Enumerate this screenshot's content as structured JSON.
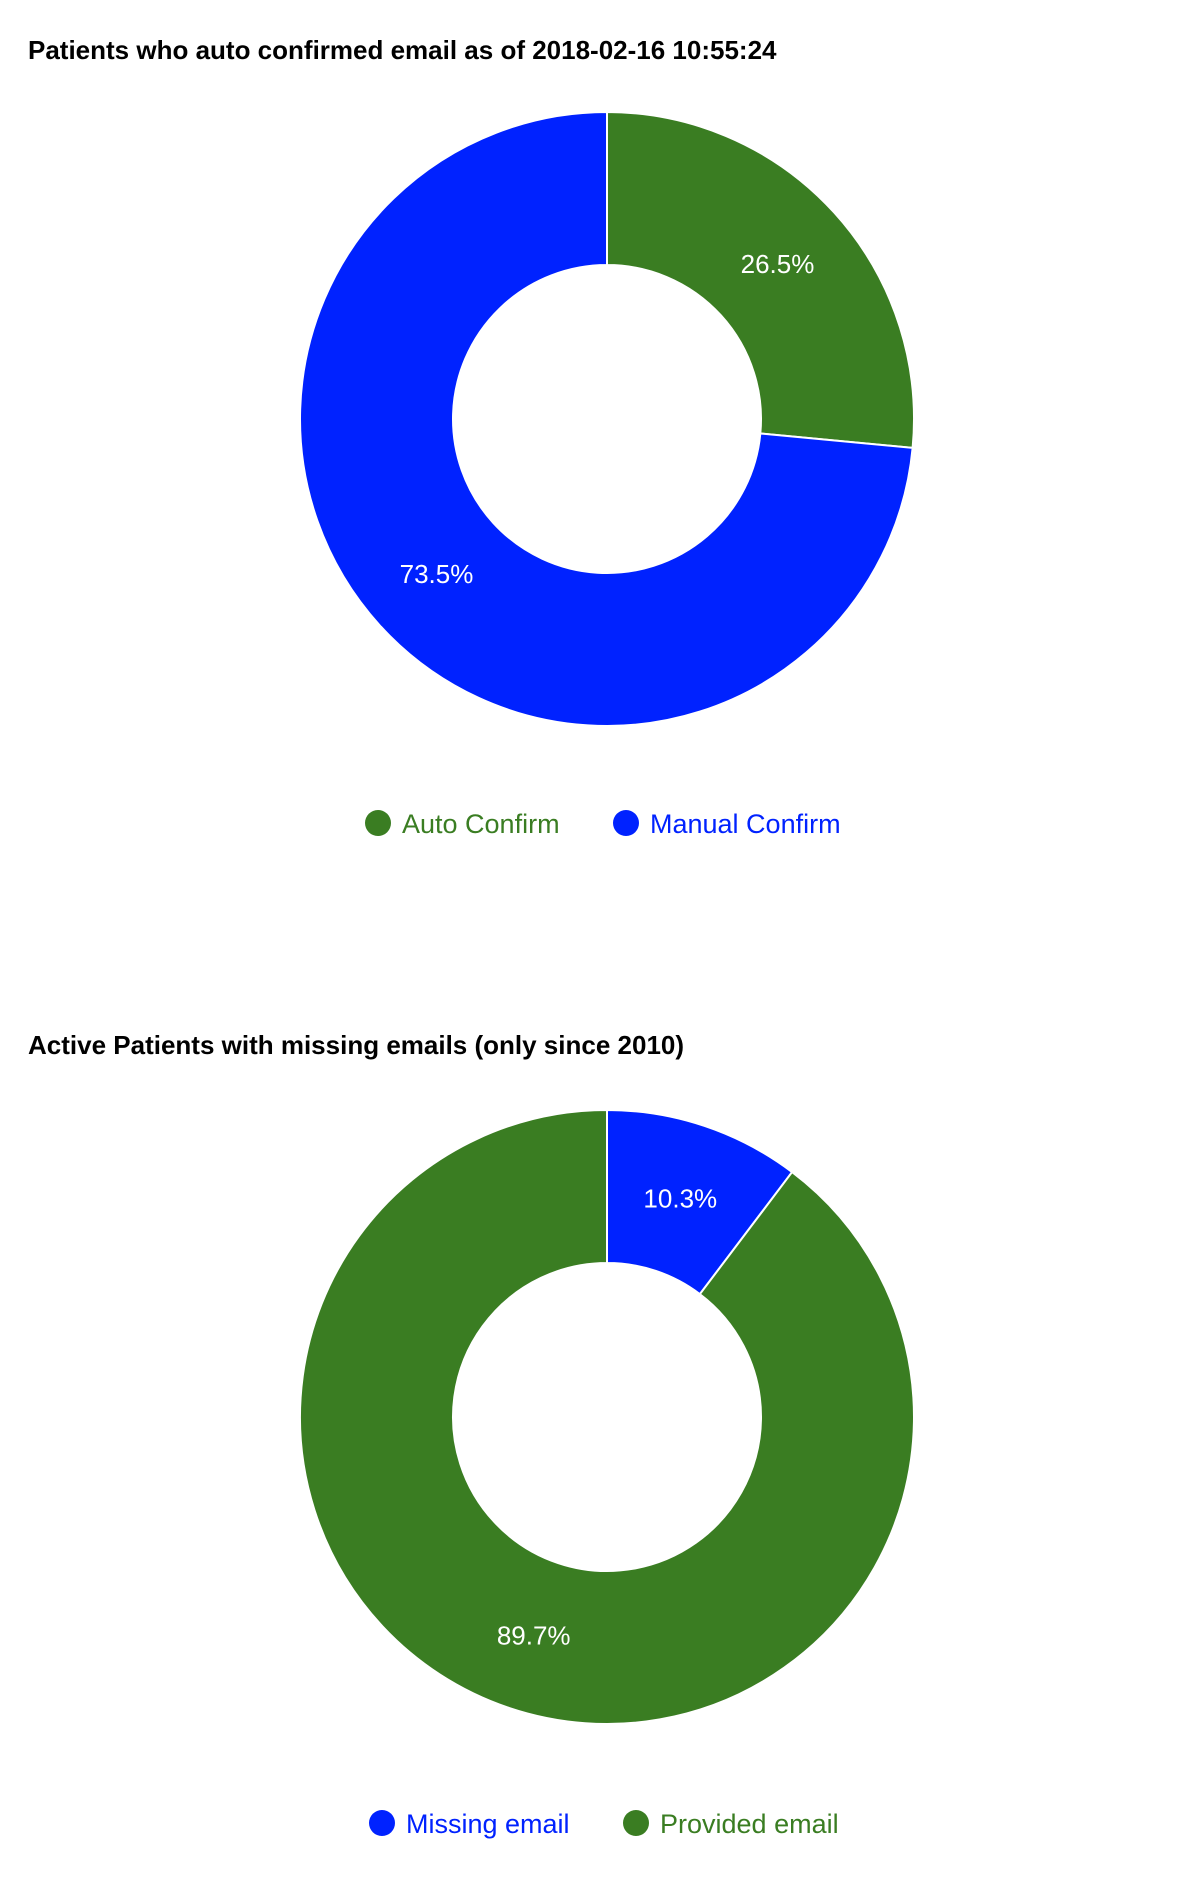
{
  "chart_data": [
    {
      "type": "pie",
      "donut": true,
      "title": "Patients who auto confirmed email as of 2018-02-16 10:55:24",
      "legend_position": "bottom",
      "slices": [
        {
          "name": "Auto Confirm",
          "value": 26.5,
          "label": "26.5%",
          "color": "#3a7d22"
        },
        {
          "name": "Manual Confirm",
          "value": 73.5,
          "label": "73.5%",
          "color": "#0022ff"
        }
      ]
    },
    {
      "type": "pie",
      "donut": true,
      "title": "Active Patients with missing emails (only since 2010)",
      "legend_position": "bottom",
      "slices": [
        {
          "name": "Missing email",
          "value": 10.3,
          "label": "10.3%",
          "color": "#0022ff"
        },
        {
          "name": "Provided email",
          "value": 89.7,
          "label": "89.7%",
          "color": "#3a7d22"
        }
      ]
    }
  ]
}
